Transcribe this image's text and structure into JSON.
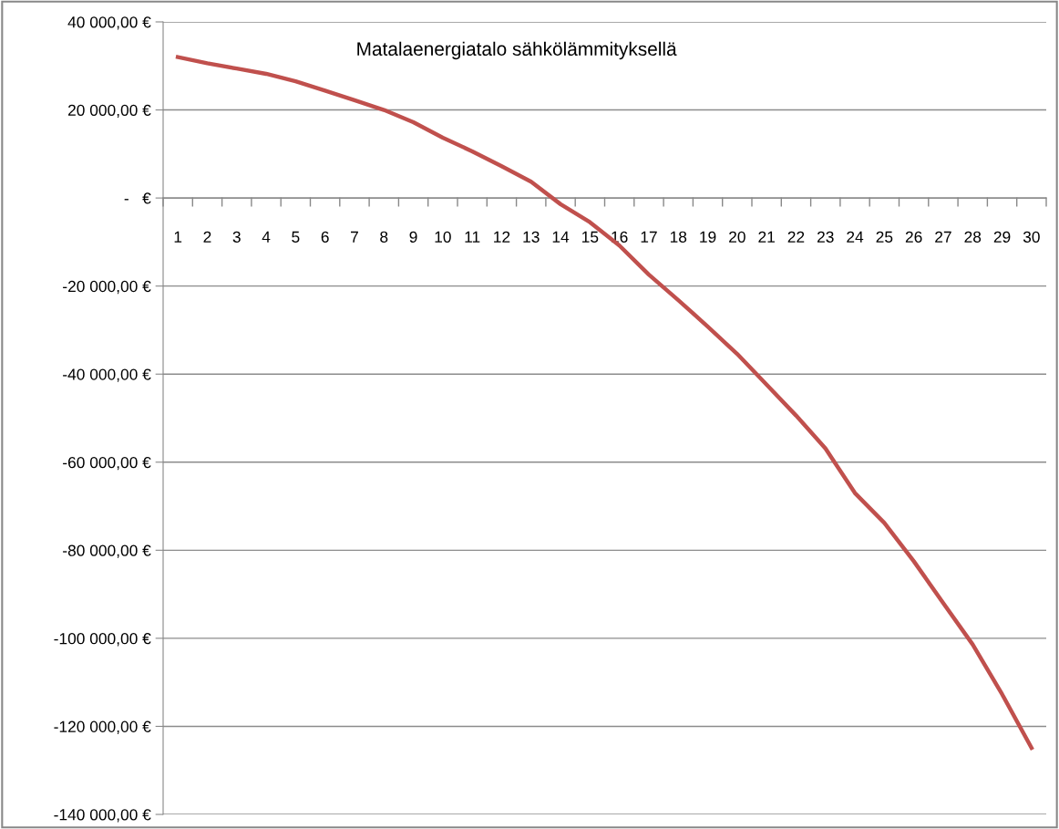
{
  "chart_data": {
    "type": "line",
    "title": "Matalaenergiatalo sähkölämmityksellä",
    "categories": [
      "1",
      "2",
      "3",
      "4",
      "5",
      "6",
      "7",
      "8",
      "9",
      "10",
      "11",
      "12",
      "13",
      "14",
      "15",
      "16",
      "17",
      "18",
      "19",
      "20",
      "21",
      "22",
      "23",
      "24",
      "25",
      "26",
      "27",
      "28",
      "29",
      "30"
    ],
    "series": [
      {
        "color": "#c0504d",
        "values": [
          32000,
          30600,
          29400,
          28200,
          26500,
          24400,
          22200,
          20000,
          17200,
          13700,
          10600,
          7200,
          3700,
          -1400,
          -5500,
          -10800,
          -17400,
          -23200,
          -29200,
          -35400,
          -42400,
          -49400,
          -56900,
          -67000,
          -73800,
          -82500,
          -92000,
          -101400,
          -112700,
          -124900
        ]
      }
    ],
    "ylim": [
      -140000,
      40000
    ],
    "yticks": [
      {
        "value": 40000,
        "label": "40 000,00 €"
      },
      {
        "value": 20000,
        "label": "20 000,00 €"
      },
      {
        "value": 0,
        "label": "-   €"
      },
      {
        "value": -20000,
        "label": "-20 000,00 €"
      },
      {
        "value": -40000,
        "label": "-40 000,00 €"
      },
      {
        "value": -60000,
        "label": "-60 000,00 €"
      },
      {
        "value": -80000,
        "label": "-80 000,00 €"
      },
      {
        "value": -100000,
        "label": "-100 000,00 €"
      },
      {
        "value": -120000,
        "label": "-120 000,00 €"
      },
      {
        "value": -140000,
        "label": "-140 000,00 €"
      }
    ],
    "grid": "y",
    "legend": false,
    "marker": "none",
    "line_style": "solid"
  }
}
